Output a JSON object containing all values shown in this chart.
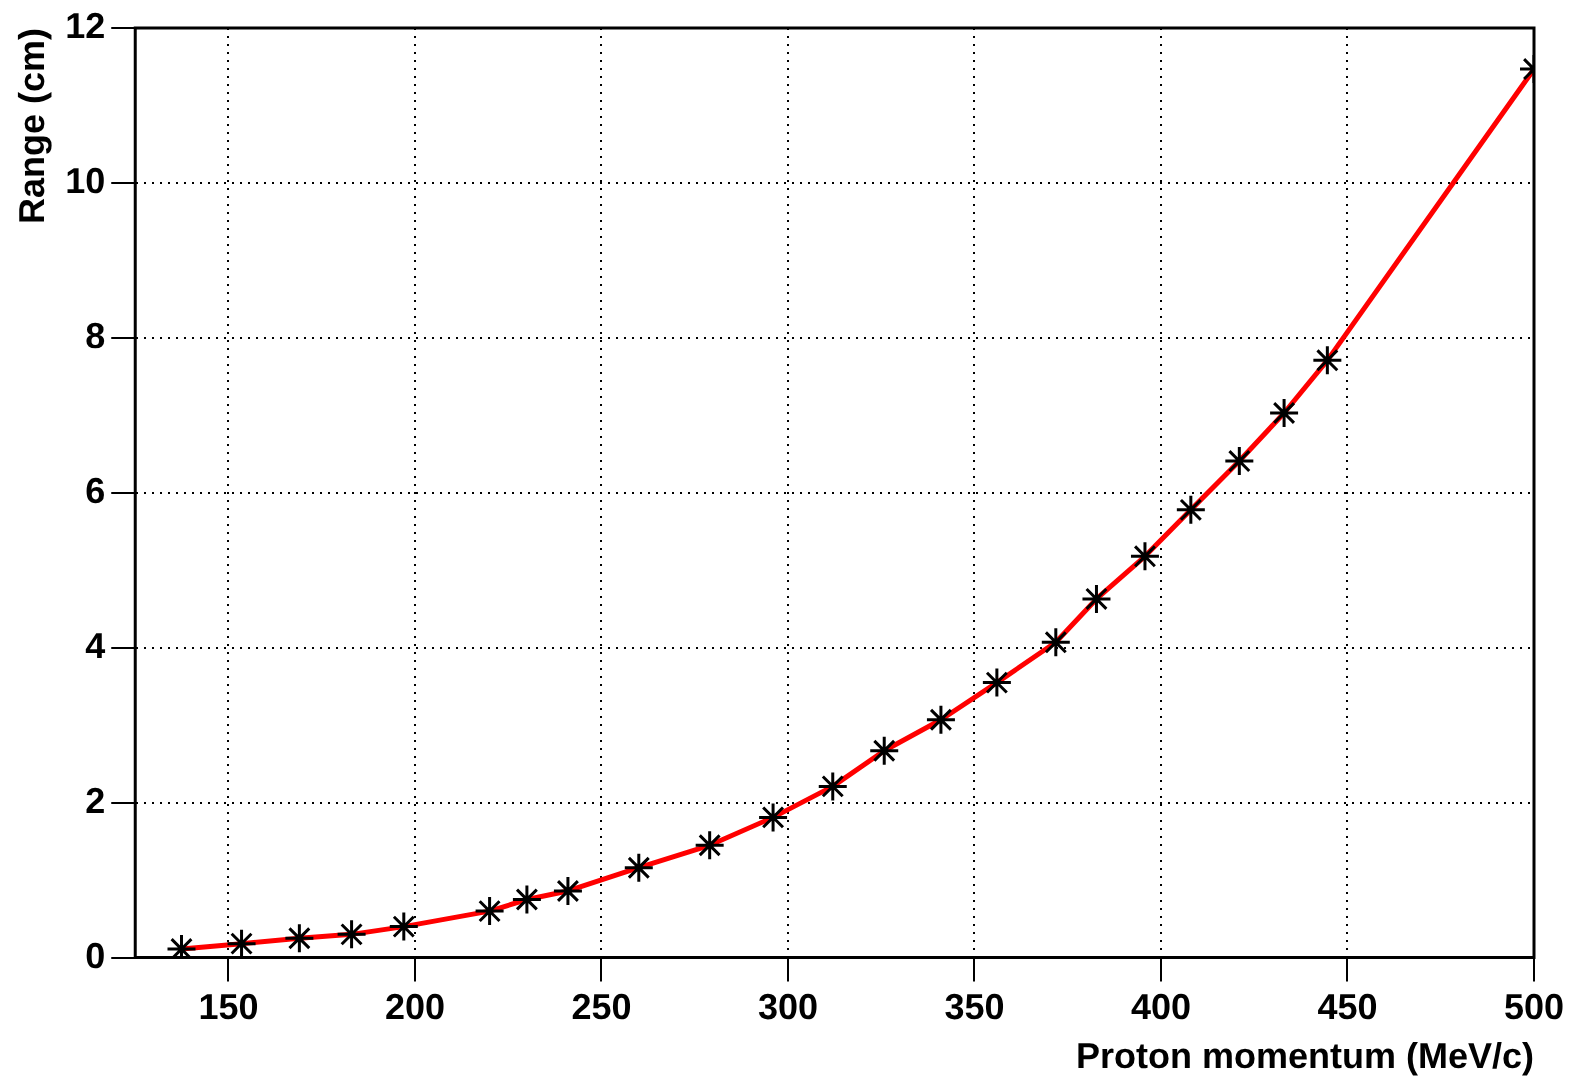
{
  "chart_data": {
    "type": "scatter",
    "xlabel": "Proton momentum (MeV/c)",
    "ylabel": "Range (cm)",
    "xlim": [
      125,
      500
    ],
    "xticks": [
      150,
      200,
      250,
      300,
      350,
      400,
      450,
      500
    ],
    "ylim": [
      0,
      12
    ],
    "yticks": [
      0,
      2,
      4,
      6,
      8,
      10,
      12
    ],
    "grid": true,
    "marker": "cross",
    "series": [
      {
        "type": "line",
        "color": "#ff0000",
        "marker": "none",
        "line_style": "solid",
        "x": [
          137.4,
          153.5,
          169,
          183,
          197,
          220,
          230,
          241,
          260,
          279,
          296,
          312,
          325.8,
          341,
          356,
          371.8,
          382.7,
          395.7,
          408,
          421,
          433,
          444.6,
          500
        ],
        "values": [
          0.11,
          0.18,
          0.25,
          0.3,
          0.4,
          0.6,
          0.75,
          0.86,
          1.16,
          1.45,
          1.81,
          2.21,
          2.67,
          3.07,
          3.55,
          4.07,
          4.63,
          5.18,
          5.78,
          6.41,
          7.03,
          7.71,
          11.47
        ]
      },
      {
        "color": "#000000",
        "x": [
          137.4,
          153.5,
          169,
          183,
          197,
          220,
          230,
          241,
          260,
          279,
          296,
          312,
          325.8,
          341,
          356,
          371.8,
          382.7,
          395.7,
          408,
          421,
          433,
          444.6,
          500
        ],
        "values": [
          0.11,
          0.18,
          0.25,
          0.3,
          0.4,
          0.6,
          0.75,
          0.86,
          1.16,
          1.45,
          1.81,
          2.21,
          2.67,
          3.07,
          3.55,
          4.07,
          4.63,
          5.18,
          5.78,
          6.41,
          7.03,
          7.71,
          11.47
        ]
      }
    ]
  }
}
